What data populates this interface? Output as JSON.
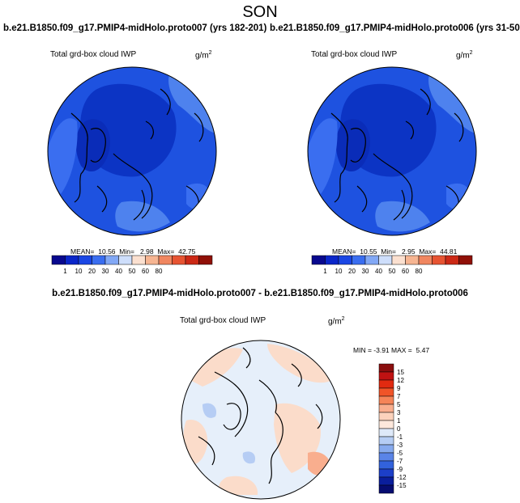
{
  "season": "SON",
  "panels": [
    {
      "title": "b.e21.B1850.f09_g17.PMIP4-midHolo.proto007 (yrs 182-201)",
      "variable": "Total grd-box cloud IWP",
      "units_base": "g/m",
      "units_exp": "2",
      "stats": {
        "mean_label": "MEAN=",
        "mean": "10.56",
        "min_label": "Min=",
        "min": "2.98",
        "max_label": "Max=",
        "max": "42.75"
      }
    },
    {
      "title": "b.e21.B1850.f09_g17.PMIP4-midHolo.proto006 (yrs 31-50)",
      "variable": "Total grd-box cloud IWP",
      "units_base": "g/m",
      "units_exp": "2",
      "stats": {
        "mean_label": "MEAN=",
        "mean": "10.55",
        "min_label": "Min=",
        "min": "2.95",
        "max_label": "Max=",
        "max": "44.81"
      }
    }
  ],
  "abs_colorbar": {
    "labels": [
      "1",
      "10",
      "20",
      "30",
      "40",
      "50",
      "60",
      "80"
    ],
    "colors": [
      "#08088e",
      "#0a26c9",
      "#1a46e4",
      "#3a6ef0",
      "#82a8f5",
      "#cedefb",
      "#fbe0d0",
      "#f6b592",
      "#f08660",
      "#e75432",
      "#cc2916",
      "#901008"
    ]
  },
  "diff_panel": {
    "title": "b.e21.B1850.f09_g17.PMIP4-midHolo.proto007 - b.e21.B1850.f09_g17.PMIP4-midHolo.proto006",
    "variable": "Total grd-box cloud IWP",
    "units_base": "g/m",
    "units_exp": "2",
    "stats": {
      "min_label": "MIN =",
      "min": "-3.91",
      "max_label": "MAX =",
      "max": "5.47"
    }
  },
  "diff_colorbar": {
    "labels": [
      "15",
      "12",
      "9",
      "7",
      "5",
      "3",
      "1",
      "0",
      "-1",
      "-3",
      "-5",
      "-7",
      "-9",
      "-12",
      "-15"
    ],
    "colors": [
      "#8a0e0e",
      "#c01212",
      "#e12a10",
      "#f05428",
      "#f58458",
      "#f9ae8e",
      "#fcd2bc",
      "#fde8dc",
      "#dee9f9",
      "#b6cdf4",
      "#87aaee",
      "#5a84e8",
      "#3262dc",
      "#1c3fc8",
      "#0a1e9c",
      "#060c70"
    ]
  },
  "colors": {
    "ocean_blue": "#1e52e0",
    "dark_core": "#0c34c4",
    "light_blue": "#4e82ee",
    "diff_base": "#e6effa",
    "diff_pos": "#fbdcca",
    "coast": "#000000"
  }
}
